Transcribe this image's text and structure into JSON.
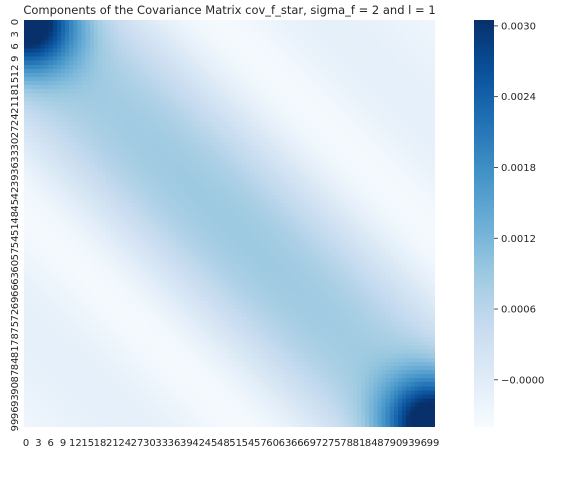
{
  "chart_data": {
    "type": "heatmap",
    "title": "Components of the Covariance Matrix cov_f_star, sigma_f = 2 and l = 1",
    "xlabel": "",
    "ylabel": "",
    "matrix_size": 100,
    "x_tick_labels": [
      "0",
      "3",
      "6",
      "9",
      "12",
      "15",
      "18",
      "21",
      "24",
      "27",
      "30",
      "33",
      "36",
      "39",
      "42",
      "45",
      "48",
      "51",
      "54",
      "57",
      "60",
      "63",
      "66",
      "69",
      "72",
      "75",
      "78",
      "81",
      "84",
      "87",
      "90",
      "93",
      "96",
      "99"
    ],
    "y_tick_labels": [
      "0",
      "3",
      "6",
      "9",
      "12",
      "15",
      "18",
      "21",
      "24",
      "27",
      "30",
      "33",
      "36",
      "39",
      "42",
      "45",
      "48",
      "51",
      "54",
      "57",
      "60",
      "63",
      "66",
      "69",
      "72",
      "75",
      "78",
      "81",
      "84",
      "87",
      "90",
      "93",
      "96",
      "99"
    ],
    "colorbar": {
      "min": -0.0004,
      "max": 0.00305,
      "ticks": [
        -0.0,
        0.0006,
        0.0012,
        0.0018,
        0.0024,
        0.003
      ],
      "tick_labels": [
        "−0.0000",
        "0.0006",
        "0.0012",
        "0.0018",
        "0.0024",
        "0.0030"
      ],
      "colormap": "Blues"
    },
    "value_summary": {
      "corner_top_left_max": 0.00305,
      "corner_bottom_right_max": 0.00305,
      "diagonal_center": 0.0008,
      "off_diagonal_corners": -0.0004,
      "anti_diagonal_band_low": -0.0002
    },
    "grid": false,
    "legend": "colorbar-right"
  },
  "colors": {
    "cmap_stops": [
      "#f7fbff",
      "#deebf7",
      "#c6dbef",
      "#9ecae1",
      "#6baed6",
      "#4292c6",
      "#2171b5",
      "#08519c",
      "#08306b"
    ]
  }
}
